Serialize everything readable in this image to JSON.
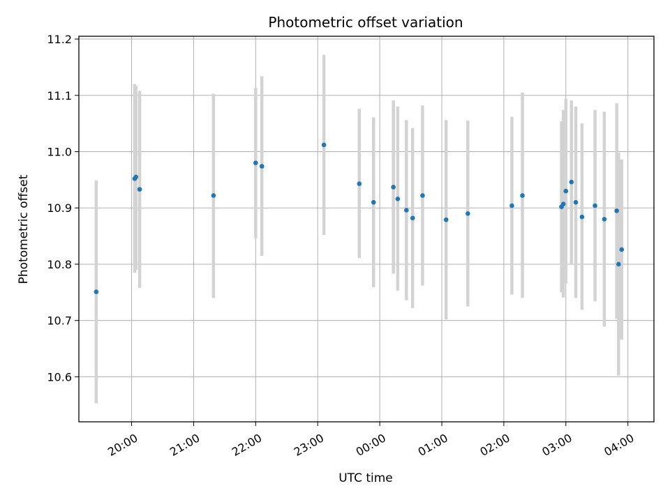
{
  "chart_data": {
    "type": "scatter",
    "title": "Photometric offset variation",
    "xlabel": "UTC time",
    "ylabel": "Photometric offset",
    "grid": true,
    "xlim": [
      19.15,
      28.42
    ],
    "ylim": [
      10.52,
      11.205
    ],
    "x_ticks": [
      {
        "value": 20,
        "label": "20:00"
      },
      {
        "value": 21,
        "label": "21:00"
      },
      {
        "value": 22,
        "label": "22:00"
      },
      {
        "value": 23,
        "label": "23:00"
      },
      {
        "value": 24,
        "label": "00:00"
      },
      {
        "value": 25,
        "label": "01:00"
      },
      {
        "value": 26,
        "label": "02:00"
      },
      {
        "value": 27,
        "label": "03:00"
      },
      {
        "value": 28,
        "label": "04:00"
      }
    ],
    "y_ticks": [
      {
        "value": 10.6,
        "label": "10.6"
      },
      {
        "value": 10.7,
        "label": "10.7"
      },
      {
        "value": 10.8,
        "label": "10.8"
      },
      {
        "value": 10.9,
        "label": "10.9"
      },
      {
        "value": 11.0,
        "label": "11.0"
      },
      {
        "value": 11.1,
        "label": "11.1"
      },
      {
        "value": 11.2,
        "label": "11.2"
      }
    ],
    "marker_color": "#1f77b4",
    "errorbar_color": "#d3d3d3",
    "points": [
      {
        "x": 19.43,
        "y": 10.751,
        "low": 10.553,
        "high": 10.949
      },
      {
        "x": 20.05,
        "y": 10.952,
        "low": 10.785,
        "high": 11.12
      },
      {
        "x": 20.07,
        "y": 10.955,
        "low": 10.79,
        "high": 11.117
      },
      {
        "x": 20.13,
        "y": 10.933,
        "low": 10.758,
        "high": 11.108
      },
      {
        "x": 21.32,
        "y": 10.922,
        "low": 10.74,
        "high": 11.103
      },
      {
        "x": 22.0,
        "y": 10.98,
        "low": 10.846,
        "high": 11.113
      },
      {
        "x": 22.1,
        "y": 10.974,
        "low": 10.815,
        "high": 11.134
      },
      {
        "x": 23.1,
        "y": 11.012,
        "low": 10.852,
        "high": 11.172
      },
      {
        "x": 23.67,
        "y": 10.943,
        "low": 10.811,
        "high": 11.076
      },
      {
        "x": 23.9,
        "y": 10.91,
        "low": 10.759,
        "high": 11.061
      },
      {
        "x": 24.22,
        "y": 10.937,
        "low": 10.783,
        "high": 11.091
      },
      {
        "x": 24.29,
        "y": 10.916,
        "low": 10.753,
        "high": 11.08
      },
      {
        "x": 24.43,
        "y": 10.896,
        "low": 10.736,
        "high": 11.056
      },
      {
        "x": 24.53,
        "y": 10.882,
        "low": 10.722,
        "high": 11.042
      },
      {
        "x": 24.69,
        "y": 10.922,
        "low": 10.762,
        "high": 11.082
      },
      {
        "x": 25.07,
        "y": 10.879,
        "low": 10.702,
        "high": 11.056
      },
      {
        "x": 25.42,
        "y": 10.89,
        "low": 10.725,
        "high": 11.055
      },
      {
        "x": 26.13,
        "y": 10.904,
        "low": 10.746,
        "high": 11.062
      },
      {
        "x": 26.3,
        "y": 10.922,
        "low": 10.74,
        "high": 11.105
      },
      {
        "x": 26.93,
        "y": 10.902,
        "low": 10.75,
        "high": 11.054
      },
      {
        "x": 26.96,
        "y": 10.907,
        "low": 10.741,
        "high": 11.074
      },
      {
        "x": 27.0,
        "y": 10.93,
        "low": 10.766,
        "high": 11.094
      },
      {
        "x": 27.09,
        "y": 10.946,
        "low": 10.801,
        "high": 11.091
      },
      {
        "x": 27.16,
        "y": 10.91,
        "low": 10.74,
        "high": 11.08
      },
      {
        "x": 27.26,
        "y": 10.884,
        "low": 10.719,
        "high": 11.05
      },
      {
        "x": 27.47,
        "y": 10.904,
        "low": 10.734,
        "high": 11.074
      },
      {
        "x": 27.62,
        "y": 10.88,
        "low": 10.689,
        "high": 11.071
      },
      {
        "x": 27.82,
        "y": 10.895,
        "low": 10.703,
        "high": 11.086
      },
      {
        "x": 27.85,
        "y": 10.8,
        "low": 10.602,
        "high": 10.998
      },
      {
        "x": 27.9,
        "y": 10.826,
        "low": 10.666,
        "high": 10.986
      }
    ]
  }
}
